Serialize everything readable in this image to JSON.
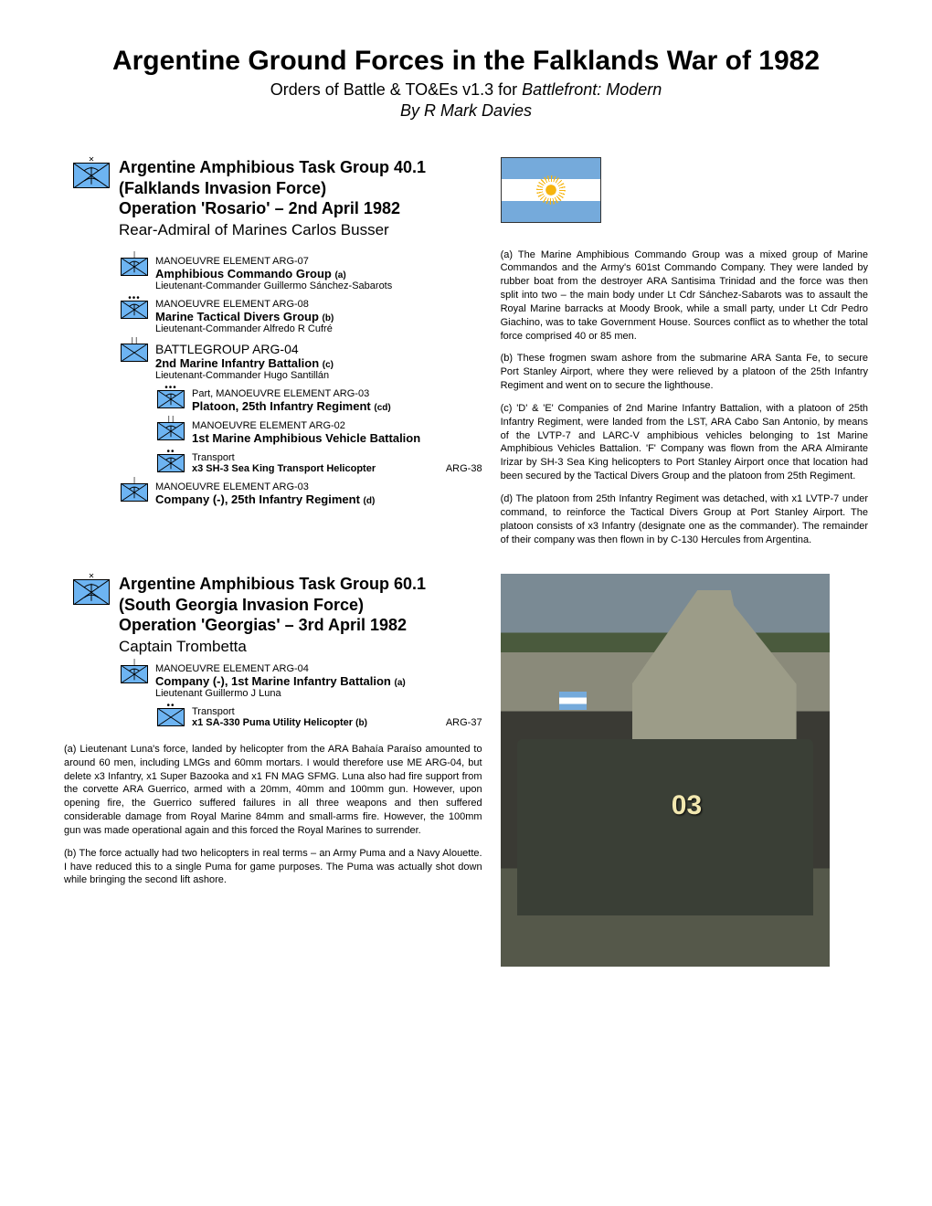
{
  "title": "Argentine Ground Forces in the Falklands War of 1982",
  "subtitle_prefix": "Orders of Battle & TO&Es v1.3 for ",
  "subtitle_italic": "Battlefront: Modern",
  "author": "By R Mark Davies",
  "colors": {
    "symbol_fill": "#6db4f2",
    "flag_blue": "#75aadb",
    "flag_sun": "#f6b40e"
  },
  "tg401": {
    "h1": "Argentine Amphibious Task Group 40.1",
    "h2": "(Falklands Invasion Force)",
    "h3": "Operation 'Rosario' – 2nd April 1982",
    "cmdr": "Rear-Admiral of Marines Carlos Busser",
    "units": [
      {
        "top": "MANOEUVRE ELEMENT ARG-07",
        "name": "Amphibious Commando Group",
        "ann": "(a)",
        "sub": "Lieutenant-Commander Guillermo Sánchez-Sabarots",
        "ech": "|"
      },
      {
        "top": "MANOEUVRE ELEMENT ARG-08",
        "name": "Marine Tactical Divers Group",
        "ann": "(b)",
        "sub": "Lieutenant-Commander Alfredo R Cufré",
        "ech": "•••"
      },
      {
        "top": "BATTLEGROUP ARG-04",
        "name": "2nd Marine Infantry Battalion",
        "ann": "(c)",
        "sub": "Lieutenant-Commander Hugo Santillán",
        "ech": "| |",
        "bg": true
      },
      {
        "top": "Part, MANOEUVRE ELEMENT ARG-03",
        "name": "Platoon, 25th Infantry Regiment",
        "ann": "(cd)",
        "ech": "•••",
        "indent": 1
      },
      {
        "top": "MANOEUVRE ELEMENT ARG-02",
        "name": "1st Marine Amphibious Vehicle Battalion",
        "ech": "| |",
        "indent": 1
      },
      {
        "top": "Transport",
        "name_plain": "x3 SH-3 Sea King Transport Helicopter",
        "code": "ARG-38",
        "ech": "••",
        "indent": 1,
        "transport": true
      },
      {
        "top": "MANOEUVRE ELEMENT ARG-03",
        "name": "Company (-), 25th Infantry Regiment",
        "ann": "(d)",
        "ech": "|"
      }
    ]
  },
  "notes_right": {
    "a": "(a) The Marine Amphibious Commando Group was a mixed group of Marine Commandos and the Army's 601st Commando Company. They were landed by rubber boat from the destroyer ARA Santisima Trinidad and the force was then split into two – the main body under Lt Cdr Sánchez-Sabarots was to assault the Royal Marine barracks at Moody Brook, while a small party, under Lt Cdr Pedro Giachino, was to take Government House. Sources conflict as to whether the total force comprised 40 or 85 men.",
    "b": "(b) These frogmen swam ashore from the submarine ARA Santa Fe, to secure Port Stanley Airport, where they were relieved by a platoon of the 25th Infantry Regiment and went on to secure the lighthouse.",
    "c": "(c) 'D' & 'E' Companies of 2nd Marine Infantry Battalion, with a platoon of 25th Infantry Regiment, were landed from the LST, ARA Cabo San Antonio, by means of the LVTP-7 and LARC-V amphibious vehicles belonging to 1st Marine Amphibious Vehicles Battalion. 'F' Company was flown from the ARA Almirante Irizar by SH-3 Sea King helicopters to Port Stanley Airport once that location had been secured by the Tactical Divers Group and the platoon from 25th Regiment.",
    "d": "(d) The platoon from 25th Infantry Regiment was detached, with x1 LVTP-7 under command, to reinforce the Tactical Divers Group at Port Stanley Airport. The platoon consists of x3 Infantry (designate one as the commander). The remainder of their company was then flown in by C-130 Hercules from Argentina."
  },
  "tg601": {
    "h1": "Argentine Amphibious Task Group 60.1",
    "h2": "(South Georgia Invasion Force)",
    "h3": "Operation 'Georgias' – 3rd April 1982",
    "cmdr": "Captain Trombetta",
    "unit": {
      "top": "MANOEUVRE ELEMENT ARG-04",
      "name": "Company (-), 1st Marine Infantry Battalion",
      "ann": "(a)",
      "sub": "Lieutenant Guillermo J Luna",
      "ech": "|"
    },
    "transport": {
      "top": "Transport",
      "name": "x1 SA-330 Puma Utility Helicopter",
      "ann": "(b)",
      "code": "ARG-37",
      "ech": "••"
    }
  },
  "notes_lower": {
    "a": "(a) Lieutenant Luna's force, landed by helicopter from the ARA Bahaía Paraíso amounted to around 60 men, including LMGs and 60mm mortars. I would therefore use ME ARG-04, but delete x3 Infantry, x1 Super Bazooka and x1 FN MAG SFMG. Luna also had fire support from the corvette ARA Guerrico, armed with a 20mm, 40mm and 100mm gun. However, upon opening fire, the Guerrico suffered failures in all three weapons and then suffered considerable damage from Royal Marine 84mm and small-arms fire. However, the 100mm gun was made operational again and this forced the Royal Marines to surrender.",
    "b": "(b) The force actually had two helicopters in real terms – an Army Puma and a Navy Alouette. I have reduced this to a single Puma for game purposes. The Puma was actually shot down while bringing the second lift ashore."
  },
  "photo": {
    "vehicle_num": "03"
  }
}
